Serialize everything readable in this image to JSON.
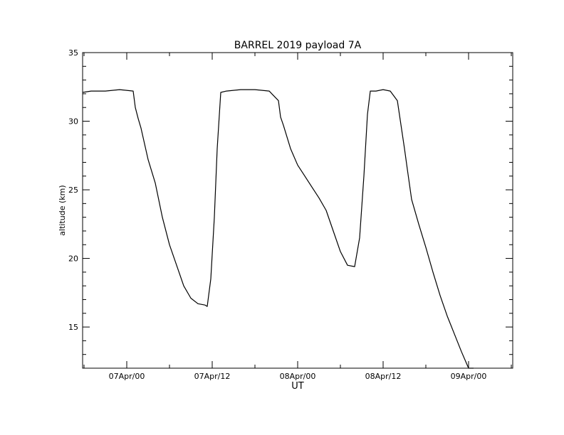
{
  "chart_data": {
    "type": "line",
    "title": "BARREL 2019 payload 7A",
    "xlabel": "UT",
    "ylabel": "altitude (km)",
    "x_unit": "hours since 07Apr/00",
    "xlim": [
      -6.2,
      54.2
    ],
    "ylim": [
      12,
      35
    ],
    "x_ticks": [
      {
        "value": 0,
        "label": "07Apr/00"
      },
      {
        "value": 12,
        "label": "07Apr/12"
      },
      {
        "value": 24,
        "label": "08Apr/00"
      },
      {
        "value": 36,
        "label": "08Apr/12"
      },
      {
        "value": 48,
        "label": "09Apr/00"
      }
    ],
    "y_ticks": [
      {
        "value": 15,
        "label": "15"
      },
      {
        "value": 20,
        "label": "20"
      },
      {
        "value": 25,
        "label": "25"
      },
      {
        "value": 30,
        "label": "30"
      },
      {
        "value": 35,
        "label": "35"
      }
    ],
    "grid": false,
    "legend": "none",
    "series": [
      {
        "color": "#000000",
        "x": [
          -6.2,
          -5,
          -3,
          -1,
          0.9,
          1.2,
          1.6,
          2,
          3,
          4,
          5,
          6,
          7,
          8,
          9,
          10,
          11,
          11.3,
          11.8,
          12.3,
          12.7,
          13.2,
          14,
          16,
          18,
          20,
          21.3,
          21.6,
          22,
          23,
          24,
          25,
          26,
          27,
          28,
          29,
          30,
          31,
          32,
          32.7,
          33.3,
          33.8,
          34.2,
          34.7,
          35,
          36,
          37,
          38,
          39,
          39.4,
          40,
          41,
          42,
          43,
          44,
          45,
          46,
          47,
          48,
          48.7
        ],
        "y": [
          32.1,
          32.2,
          32.2,
          32.3,
          32.2,
          31.0,
          30.2,
          29.5,
          27.2,
          25.5,
          23.0,
          21.0,
          19.5,
          18.0,
          17.1,
          16.7,
          16.6,
          16.5,
          18.5,
          23.0,
          28.0,
          32.1,
          32.2,
          32.3,
          32.3,
          32.2,
          31.5,
          30.3,
          29.7,
          28.0,
          26.8,
          26.0,
          25.2,
          24.4,
          23.5,
          22.0,
          20.5,
          19.5,
          19.4,
          21.5,
          26.0,
          30.5,
          32.2,
          32.2,
          32.2,
          32.3,
          32.2,
          31.5,
          28.0,
          26.5,
          24.3,
          22.5,
          20.8,
          19.0,
          17.3,
          15.8,
          14.5,
          13.2,
          12.0,
          12.0
        ]
      }
    ]
  }
}
